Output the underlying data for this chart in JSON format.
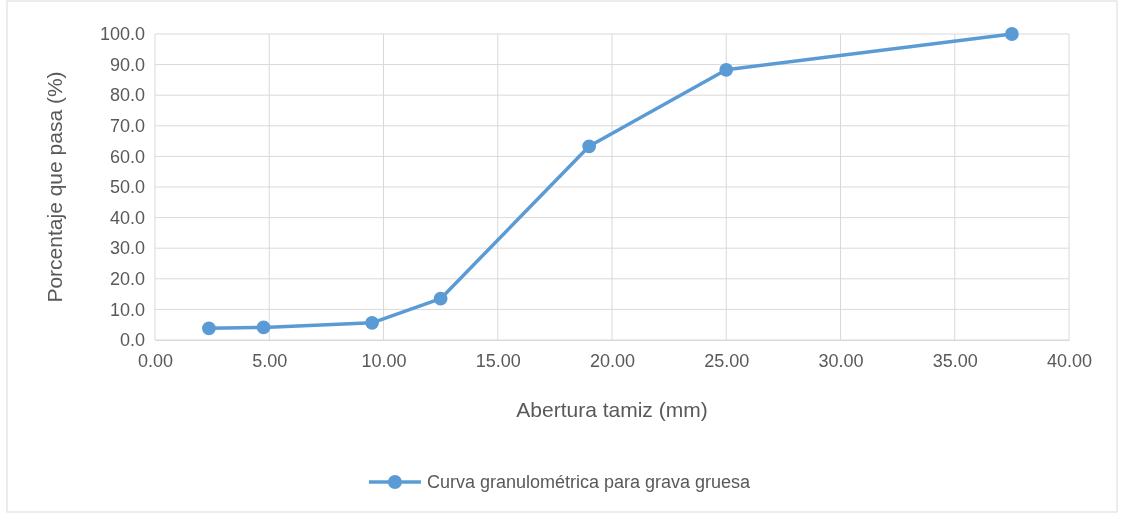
{
  "chart_data": {
    "type": "line",
    "xlabel": "Abertura tamiz (mm)",
    "ylabel": "Porcentaje que pasa (%)",
    "x": [
      2.36,
      4.75,
      9.5,
      12.5,
      19,
      25,
      37.5
    ],
    "series": [
      {
        "name": "Curva granulométrica para grava gruesa",
        "color": "#5b9bd5",
        "values": [
          3.8,
          4.1,
          5.6,
          13.5,
          63.3,
          88.3,
          100
        ]
      }
    ],
    "xlim": [
      0,
      40
    ],
    "xticks": [
      {
        "value": 0,
        "label": "0.00"
      },
      {
        "value": 5,
        "label": "5.00"
      },
      {
        "value": 10,
        "label": "10.00"
      },
      {
        "value": 15,
        "label": "15.00"
      },
      {
        "value": 20,
        "label": "20.00"
      },
      {
        "value": 25,
        "label": "25.00"
      },
      {
        "value": 30,
        "label": "30.00"
      },
      {
        "value": 35,
        "label": "35.00"
      },
      {
        "value": 40,
        "label": "40.00"
      }
    ],
    "ylim": [
      0,
      100
    ],
    "yticks": [
      {
        "value": 0,
        "label": "0.0"
      },
      {
        "value": 10,
        "label": "10.0"
      },
      {
        "value": 20,
        "label": "20.0"
      },
      {
        "value": 30,
        "label": "30.0"
      },
      {
        "value": 40,
        "label": "40.0"
      },
      {
        "value": 50,
        "label": "50.0"
      },
      {
        "value": 60,
        "label": "60.0"
      },
      {
        "value": 70,
        "label": "70.0"
      },
      {
        "value": 80,
        "label": "80.0"
      },
      {
        "value": 90,
        "label": "90.0"
      },
      {
        "value": 100,
        "label": "100.0"
      }
    ],
    "grid": true,
    "legend": "bottom",
    "marker": "circle",
    "line_style": "solid"
  }
}
